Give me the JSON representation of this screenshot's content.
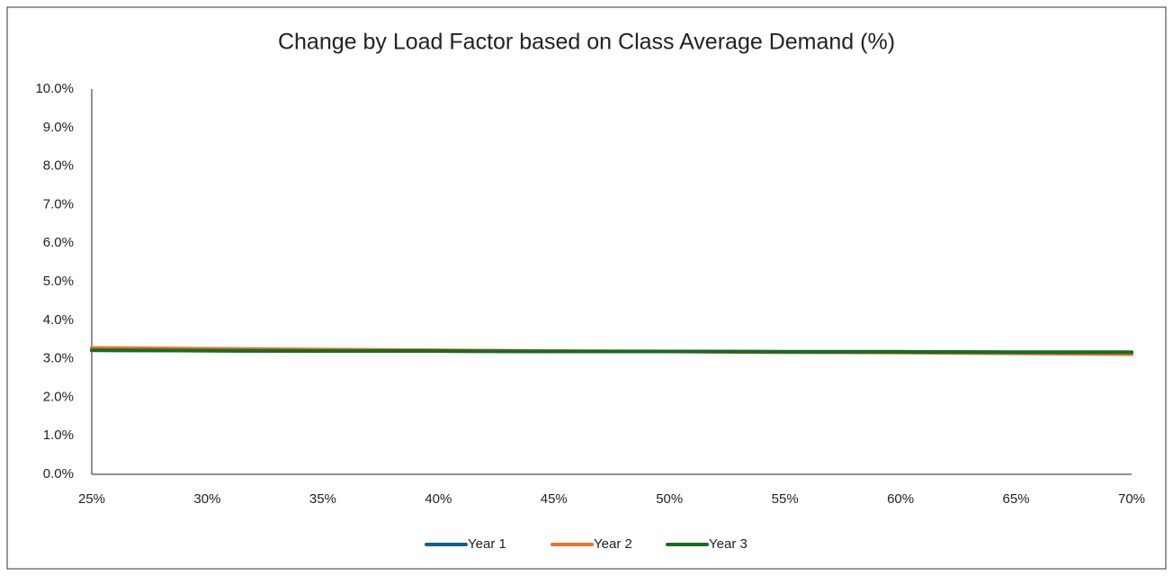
{
  "chart_data": {
    "type": "line",
    "title": "Change by Load Factor based on Class Average Demand (%)",
    "x": [
      25,
      30,
      35,
      40,
      45,
      50,
      55,
      60,
      65,
      70
    ],
    "series": [
      {
        "name": "Year 1",
        "color": "#156082",
        "values": [
          3.22,
          3.21,
          3.2,
          3.2,
          3.19,
          3.19,
          3.18,
          3.18,
          3.17,
          3.17
        ]
      },
      {
        "name": "Year 2",
        "color": "#e97132",
        "values": [
          3.28,
          3.26,
          3.24,
          3.22,
          3.2,
          3.19,
          3.17,
          3.16,
          3.14,
          3.12
        ]
      },
      {
        "name": "Year 3",
        "color": "#196b24",
        "values": [
          3.22,
          3.21,
          3.2,
          3.2,
          3.19,
          3.19,
          3.18,
          3.18,
          3.17,
          3.17
        ]
      }
    ],
    "xlim": [
      25,
      70
    ],
    "xticks": [
      {
        "value": 25,
        "label": "25%"
      },
      {
        "value": 30,
        "label": "30%"
      },
      {
        "value": 35,
        "label": "35%"
      },
      {
        "value": 40,
        "label": "40%"
      },
      {
        "value": 45,
        "label": "45%"
      },
      {
        "value": 50,
        "label": "50%"
      },
      {
        "value": 55,
        "label": "55%"
      },
      {
        "value": 60,
        "label": "60%"
      },
      {
        "value": 65,
        "label": "65%"
      },
      {
        "value": 70,
        "label": "70%"
      }
    ],
    "ylim": [
      0,
      10
    ],
    "yticks": [
      {
        "value": 0,
        "label": "0.0%"
      },
      {
        "value": 1,
        "label": "1.0%"
      },
      {
        "value": 2,
        "label": "2.0%"
      },
      {
        "value": 3,
        "label": "3.0%"
      },
      {
        "value": 4,
        "label": "4.0%"
      },
      {
        "value": 5,
        "label": "5.0%"
      },
      {
        "value": 6,
        "label": "6.0%"
      },
      {
        "value": 7,
        "label": "7.0%"
      },
      {
        "value": 8,
        "label": "8.0%"
      },
      {
        "value": 9,
        "label": "9.0%"
      },
      {
        "value": 10,
        "label": "10.0%"
      }
    ],
    "grid": false,
    "legend": "bottom"
  }
}
